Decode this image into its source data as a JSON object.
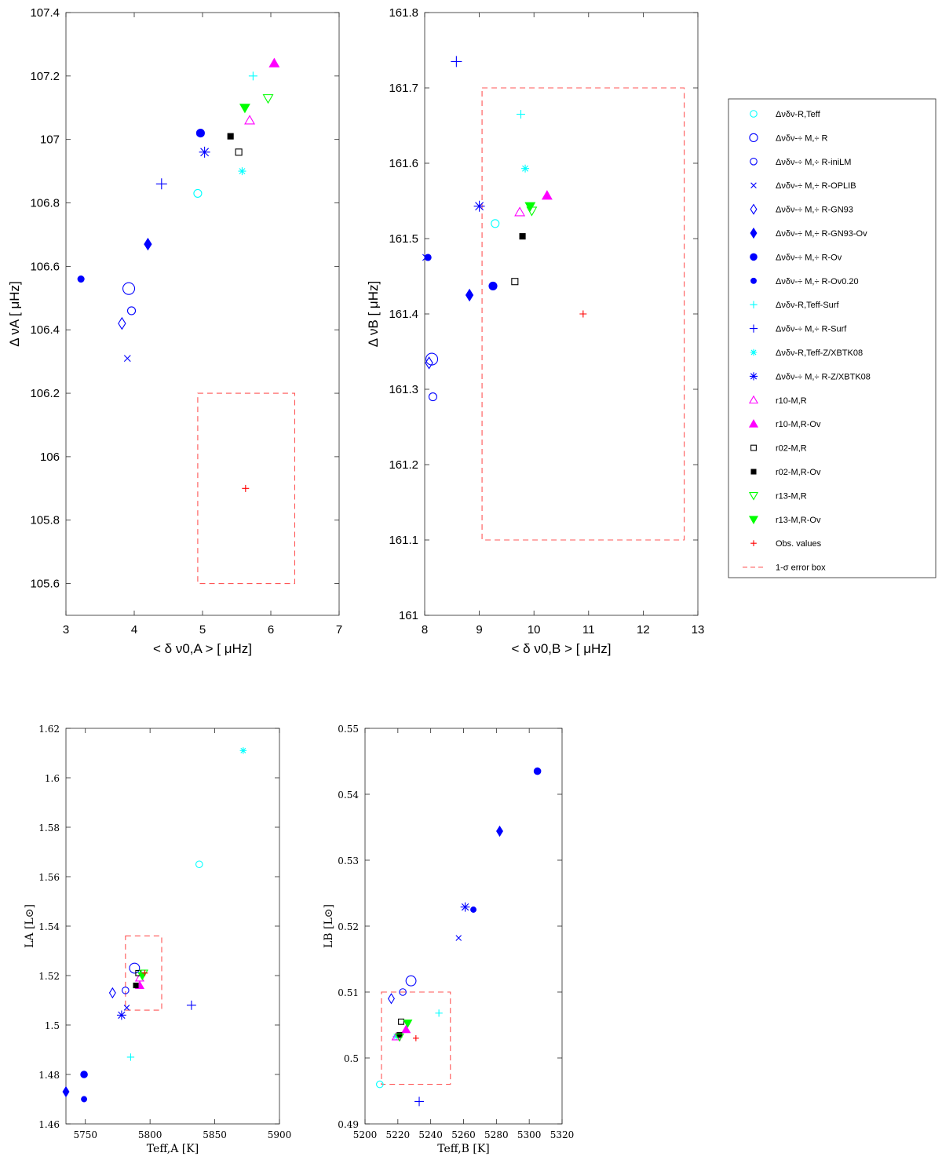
{
  "legend": {
    "items": [
      {
        "key": "DR-Teff",
        "label": "Δνδν-R,Teff",
        "color": "#00ffff",
        "marker": "circle",
        "filled": false,
        "size": 5
      },
      {
        "key": "DM-R",
        "label": "Δνδν-÷ M,÷ R",
        "color": "#0000ff",
        "marker": "circle",
        "filled": false,
        "size": 7.5
      },
      {
        "key": "DM-iniLM",
        "label": "Δνδν-÷ M,÷ R-iniLM",
        "color": "#0000ff",
        "marker": "circle",
        "filled": false,
        "size": 5
      },
      {
        "key": "DM-OPLIB",
        "label": "Δνδν-÷ M,÷ R-OPLIB",
        "color": "#0000ff",
        "marker": "x",
        "filled": false,
        "size": 4
      },
      {
        "key": "DM-GN93",
        "label": "Δνδν-÷ M,÷ R-GN93",
        "color": "#0000ff",
        "marker": "diamond",
        "filled": false,
        "size": 6
      },
      {
        "key": "DM-GN93Ov",
        "label": "Δνδν-÷ M,÷ R-GN93-Ov",
        "color": "#0000ff",
        "marker": "diamond",
        "filled": true,
        "size": 6
      },
      {
        "key": "DM-Ov",
        "label": "Δνδν-÷ M,÷ R-Ov",
        "color": "#0000ff",
        "marker": "circle",
        "filled": true,
        "size": 5
      },
      {
        "key": "DM-Ov020",
        "label": "Δνδν-÷ M,÷ R-Ov0.20",
        "color": "#0000ff",
        "marker": "circle",
        "filled": true,
        "size": 4
      },
      {
        "key": "DR-Surf",
        "label": "Δνδν-R,Teff-Surf",
        "color": "#00ffff",
        "marker": "plus",
        "filled": false,
        "size": 5.5
      },
      {
        "key": "DM-Surf",
        "label": "Δνδν-÷ M,÷ R-Surf",
        "color": "#0000ff",
        "marker": "plus",
        "filled": false,
        "size": 7
      },
      {
        "key": "DR-BTK",
        "label": "Δνδν-R,Teff-Z/XBTK08",
        "color": "#00ffff",
        "marker": "asterisk",
        "filled": false,
        "size": 5
      },
      {
        "key": "DM-BTK",
        "label": "Δνδν-÷ M,÷ R-Z/XBTK08",
        "color": "#0000ff",
        "marker": "asterisk",
        "filled": false,
        "size": 7
      },
      {
        "key": "r10",
        "label": "r10-M,R",
        "color": "#ff00ff",
        "marker": "triangle-up",
        "filled": false,
        "size": 6
      },
      {
        "key": "r10Ov",
        "label": "r10-M,R-Ov",
        "color": "#ff00ff",
        "marker": "triangle-up",
        "filled": true,
        "size": 6
      },
      {
        "key": "r02",
        "label": "r02-M,R",
        "color": "#000000",
        "marker": "square",
        "filled": false,
        "size": 4
      },
      {
        "key": "r02Ov",
        "label": "r02-M,R-Ov",
        "color": "#000000",
        "marker": "square",
        "filled": true,
        "size": 3.5
      },
      {
        "key": "r13",
        "label": "r13-M,R",
        "color": "#00ff00",
        "marker": "triangle-down",
        "filled": false,
        "size": 6
      },
      {
        "key": "r13Ov",
        "label": "r13-M,R-Ov",
        "color": "#00ff00",
        "marker": "triangle-down",
        "filled": true,
        "size": 6
      },
      {
        "key": "obs",
        "label": "Obs. values",
        "color": "#ff0000",
        "marker": "plus",
        "filled": false,
        "size": 4.5
      },
      {
        "key": "box",
        "label": "1-σ error box",
        "color": "#ff0000",
        "marker": "dashed-line",
        "filled": false,
        "size": 0
      }
    ]
  },
  "chart_data": [
    {
      "type": "scatter",
      "id": "A-seismic",
      "xlabel": "< δ ν0,A > [ μHz]",
      "ylabel": "Δ νA [ μHz]",
      "xlim": [
        3,
        7
      ],
      "ylim": [
        105.5,
        107.4
      ],
      "xticks": [
        3,
        4,
        5,
        6,
        7
      ],
      "yticks": [
        105.6,
        105.8,
        106,
        106.2,
        106.4,
        106.6,
        106.8,
        107,
        107.2,
        107.4
      ],
      "ytick_labels": [
        "105.6",
        "105.8",
        "106",
        "106.2",
        "106.4",
        "106.6",
        "106.8",
        "107",
        "107.2",
        "107.4"
      ],
      "error_box": {
        "x": [
          4.93,
          6.35
        ],
        "y": [
          105.6,
          106.2
        ]
      },
      "points": [
        {
          "series": "DR-Teff",
          "x": 4.93,
          "y": 106.83
        },
        {
          "series": "DM-R",
          "x": 3.92,
          "y": 106.53
        },
        {
          "series": "DM-iniLM",
          "x": 3.96,
          "y": 106.46
        },
        {
          "series": "DM-OPLIB",
          "x": 3.9,
          "y": 106.31
        },
        {
          "series": "DM-GN93",
          "x": 3.82,
          "y": 106.42
        },
        {
          "series": "DM-GN93Ov",
          "x": 4.2,
          "y": 106.67
        },
        {
          "series": "DM-Ov",
          "x": 4.97,
          "y": 107.02
        },
        {
          "series": "DM-Ov020",
          "x": 3.22,
          "y": 106.56
        },
        {
          "series": "DR-Surf",
          "x": 5.74,
          "y": 107.2
        },
        {
          "series": "DM-Surf",
          "x": 4.4,
          "y": 106.86
        },
        {
          "series": "DR-BTK",
          "x": 5.58,
          "y": 106.9
        },
        {
          "series": "DM-BTK",
          "x": 5.03,
          "y": 106.96
        },
        {
          "series": "r10",
          "x": 5.69,
          "y": 107.06
        },
        {
          "series": "r10Ov",
          "x": 6.05,
          "y": 107.24
        },
        {
          "series": "r02",
          "x": 5.53,
          "y": 106.96
        },
        {
          "series": "r02Ov",
          "x": 5.41,
          "y": 107.01
        },
        {
          "series": "r13",
          "x": 5.96,
          "y": 107.13
        },
        {
          "series": "r13Ov",
          "x": 5.62,
          "y": 107.1
        },
        {
          "series": "obs",
          "x": 5.63,
          "y": 105.9
        }
      ]
    },
    {
      "type": "scatter",
      "id": "B-seismic",
      "xlabel": "< δ ν0,B > [ μHz]",
      "ylabel": "Δ νB [ μHz]",
      "xlim": [
        8,
        13
      ],
      "ylim": [
        161,
        161.8
      ],
      "xticks": [
        8,
        9,
        10,
        11,
        12,
        13
      ],
      "yticks": [
        161,
        161.1,
        161.2,
        161.3,
        161.4,
        161.5,
        161.6,
        161.7,
        161.8
      ],
      "ytick_labels": [
        "161",
        "161.1",
        "161.2",
        "161.3",
        "161.4",
        "161.5",
        "161.6",
        "161.7",
        "161.8"
      ],
      "error_box": {
        "x": [
          9.05,
          12.75
        ],
        "y": [
          161.1,
          161.7
        ]
      },
      "points": [
        {
          "series": "DR-Teff",
          "x": 9.29,
          "y": 161.52
        },
        {
          "series": "DM-R",
          "x": 8.13,
          "y": 161.34
        },
        {
          "series": "DM-iniLM",
          "x": 8.15,
          "y": 161.29
        },
        {
          "series": "DM-OPLIB",
          "x": 8.02,
          "y": 161.475
        },
        {
          "series": "DM-GN93",
          "x": 8.08,
          "y": 161.335
        },
        {
          "series": "DM-GN93Ov",
          "x": 8.82,
          "y": 161.425
        },
        {
          "series": "DM-Ov",
          "x": 9.25,
          "y": 161.437
        },
        {
          "series": "DM-Ov020",
          "x": 8.06,
          "y": 161.475
        },
        {
          "series": "DR-Surf",
          "x": 9.76,
          "y": 161.665
        },
        {
          "series": "DM-Surf",
          "x": 8.58,
          "y": 161.735
        },
        {
          "series": "DR-BTK",
          "x": 9.84,
          "y": 161.593
        },
        {
          "series": "DM-BTK",
          "x": 9.0,
          "y": 161.543
        },
        {
          "series": "r10",
          "x": 9.74,
          "y": 161.535
        },
        {
          "series": "r10Ov",
          "x": 10.24,
          "y": 161.557
        },
        {
          "series": "r02",
          "x": 9.65,
          "y": 161.443
        },
        {
          "series": "r02Ov",
          "x": 9.79,
          "y": 161.503
        },
        {
          "series": "r13",
          "x": 9.96,
          "y": 161.537
        },
        {
          "series": "r13Ov",
          "x": 9.93,
          "y": 161.543
        },
        {
          "series": "obs",
          "x": 10.9,
          "y": 161.4
        }
      ]
    },
    {
      "type": "scatter",
      "id": "A-hr",
      "xlabel": "Teff,A [K]",
      "ylabel": "LA [L⊙]",
      "xlim": [
        5735,
        5900
      ],
      "ylim": [
        1.46,
        1.62
      ],
      "xticks": [
        5750,
        5800,
        5850,
        5900
      ],
      "yticks": [
        1.46,
        1.48,
        1.5,
        1.52,
        1.54,
        1.56,
        1.58,
        1.6,
        1.62
      ],
      "ytick_labels": [
        "1.46",
        "1.48",
        "1.5",
        "1.52",
        "1.54",
        "1.56",
        "1.58",
        "1.6",
        "1.62"
      ],
      "error_box": {
        "x": [
          5781,
          5809
        ],
        "y": [
          1.506,
          1.536
        ]
      },
      "points": [
        {
          "series": "DR-Teff",
          "x": 5838,
          "y": 1.565
        },
        {
          "series": "DM-R",
          "x": 5788,
          "y": 1.523
        },
        {
          "series": "DM-iniLM",
          "x": 5781,
          "y": 1.514
        },
        {
          "series": "DM-OPLIB",
          "x": 5782,
          "y": 1.507
        },
        {
          "series": "DM-GN93",
          "x": 5771,
          "y": 1.513
        },
        {
          "series": "DM-GN93Ov",
          "x": 5735,
          "y": 1.473
        },
        {
          "series": "DM-Ov",
          "x": 5749,
          "y": 1.48
        },
        {
          "series": "DM-Ov020",
          "x": 5749,
          "y": 1.47
        },
        {
          "series": "DR-Surf",
          "x": 5785,
          "y": 1.487
        },
        {
          "series": "DM-Surf",
          "x": 5832,
          "y": 1.508
        },
        {
          "series": "DR-BTK",
          "x": 5872,
          "y": 1.611
        },
        {
          "series": "DM-BTK",
          "x": 5778,
          "y": 1.504
        },
        {
          "series": "r10",
          "x": 5792,
          "y": 1.519
        },
        {
          "series": "r10Ov",
          "x": 5792,
          "y": 1.516
        },
        {
          "series": "r02",
          "x": 5791,
          "y": 1.521
        },
        {
          "series": "r02Ov",
          "x": 5789,
          "y": 1.516
        },
        {
          "series": "r13",
          "x": 5795,
          "y": 1.521
        },
        {
          "series": "r13Ov",
          "x": 5794,
          "y": 1.52
        },
        {
          "series": "obs",
          "x": 5796,
          "y": 1.521
        }
      ]
    },
    {
      "type": "scatter",
      "id": "B-hr",
      "xlabel": "Teff,B [K]",
      "ylabel": "LB [L⊙]",
      "xlim": [
        5200,
        5320
      ],
      "ylim": [
        0.49,
        0.55
      ],
      "xticks": [
        5200,
        5220,
        5240,
        5260,
        5280,
        5300,
        5320
      ],
      "yticks": [
        0.49,
        0.5,
        0.51,
        0.52,
        0.53,
        0.54,
        0.55
      ],
      "ytick_labels": [
        "0.49",
        "0.5",
        "0.51",
        "0.52",
        "0.53",
        "0.54",
        "0.55"
      ],
      "error_box": {
        "x": [
          5210,
          5252
        ],
        "y": [
          0.496,
          0.51
        ]
      },
      "points": [
        {
          "series": "DR-Teff",
          "x": 5209,
          "y": 0.496
        },
        {
          "series": "DM-R",
          "x": 5228,
          "y": 0.5117
        },
        {
          "series": "DM-iniLM",
          "x": 5223,
          "y": 0.51
        },
        {
          "series": "DM-OPLIB",
          "x": 5257,
          "y": 0.5182
        },
        {
          "series": "DM-GN93",
          "x": 5216,
          "y": 0.509
        },
        {
          "series": "DM-GN93Ov",
          "x": 5282,
          "y": 0.5344
        },
        {
          "series": "DM-Ov",
          "x": 5305,
          "y": 0.5435
        },
        {
          "series": "DM-Ov020",
          "x": 5266,
          "y": 0.5225
        },
        {
          "series": "DR-Surf",
          "x": 5245,
          "y": 0.5068
        },
        {
          "series": "DM-Surf",
          "x": 5233,
          "y": 0.4934
        },
        {
          "series": "DR-BTK",
          "x": 5219,
          "y": 0.5033
        },
        {
          "series": "DM-BTK",
          "x": 5261,
          "y": 0.5229
        },
        {
          "series": "r10",
          "x": 5219,
          "y": 0.5032
        },
        {
          "series": "r10Ov",
          "x": 5225,
          "y": 0.5043
        },
        {
          "series": "r02",
          "x": 5222,
          "y": 0.5055
        },
        {
          "series": "r02Ov",
          "x": 5221,
          "y": 0.5035
        },
        {
          "series": "r13",
          "x": 5221,
          "y": 0.5032
        },
        {
          "series": "r13Ov",
          "x": 5226,
          "y": 0.5053
        },
        {
          "series": "obs",
          "x": 5231,
          "y": 0.503
        }
      ]
    }
  ]
}
